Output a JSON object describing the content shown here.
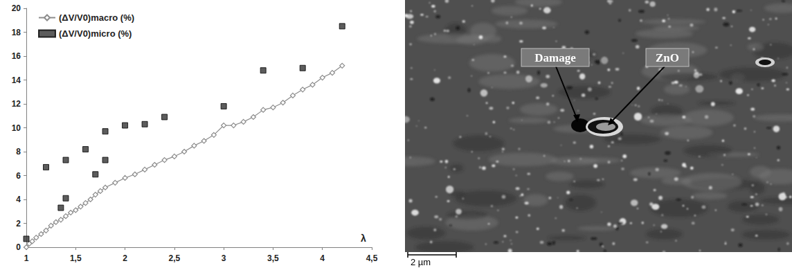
{
  "chart_data": {
    "type": "line",
    "x_label": "λ",
    "xlim": [
      1,
      4.5
    ],
    "xticks": [
      1,
      {
        "value": 1.5,
        "label": "1,5"
      },
      2,
      {
        "value": 2.5,
        "label": "2,5"
      },
      3,
      {
        "value": 3.5,
        "label": "3,5"
      },
      4,
      {
        "value": 4.5,
        "label": "4,5"
      }
    ],
    "ylim": [
      0,
      20
    ],
    "yticks": [
      0,
      2,
      4,
      6,
      8,
      10,
      12,
      14,
      16,
      18,
      20
    ],
    "grid": false,
    "legend": "top-left",
    "series": [
      {
        "name": "(ΔV/V0)macro (%)",
        "type": "line",
        "color": "#8c8c8c",
        "marker": "diamond",
        "line_style": "solid",
        "x": [
          1.0,
          1.03,
          1.06,
          1.1,
          1.15,
          1.2,
          1.25,
          1.3,
          1.35,
          1.4,
          1.45,
          1.5,
          1.55,
          1.6,
          1.65,
          1.7,
          1.75,
          1.8,
          1.9,
          2.0,
          2.1,
          2.2,
          2.3,
          2.4,
          2.5,
          2.6,
          2.7,
          2.8,
          2.9,
          3.0,
          3.1,
          3.2,
          3.3,
          3.4,
          3.5,
          3.6,
          3.7,
          3.8,
          3.9,
          4.0,
          4.1,
          4.2
        ],
        "values": [
          0,
          0.3,
          0.5,
          0.8,
          1.1,
          1.4,
          1.8,
          2.1,
          2.3,
          2.6,
          2.9,
          3.1,
          3.4,
          3.7,
          4.0,
          4.4,
          4.7,
          5.0,
          5.4,
          5.8,
          6.1,
          6.5,
          6.9,
          7.3,
          7.6,
          8.0,
          8.5,
          8.9,
          9.4,
          10.2,
          10.2,
          10.5,
          10.9,
          11.5,
          11.7,
          12.1,
          12.7,
          13.2,
          13.6,
          14.2,
          14.6,
          15.2
        ]
      },
      {
        "name": "(ΔV/V0)micro (%)",
        "type": "scatter",
        "color": "#333333",
        "marker": "square",
        "x": [
          1.0,
          1.2,
          1.35,
          1.4,
          1.4,
          1.6,
          1.7,
          1.8,
          1.8,
          2.0,
          2.2,
          2.4,
          3.0,
          3.4,
          3.8,
          4.2
        ],
        "values": [
          0.7,
          6.7,
          3.3,
          4.1,
          7.3,
          8.2,
          6.1,
          7.3,
          9.7,
          10.2,
          10.3,
          10.9,
          11.8,
          14.8,
          15.0,
          18.5
        ]
      }
    ]
  },
  "micrograph": {
    "annotations": [
      "Damage",
      "ZnO"
    ],
    "scale_bar": "2 µm"
  }
}
